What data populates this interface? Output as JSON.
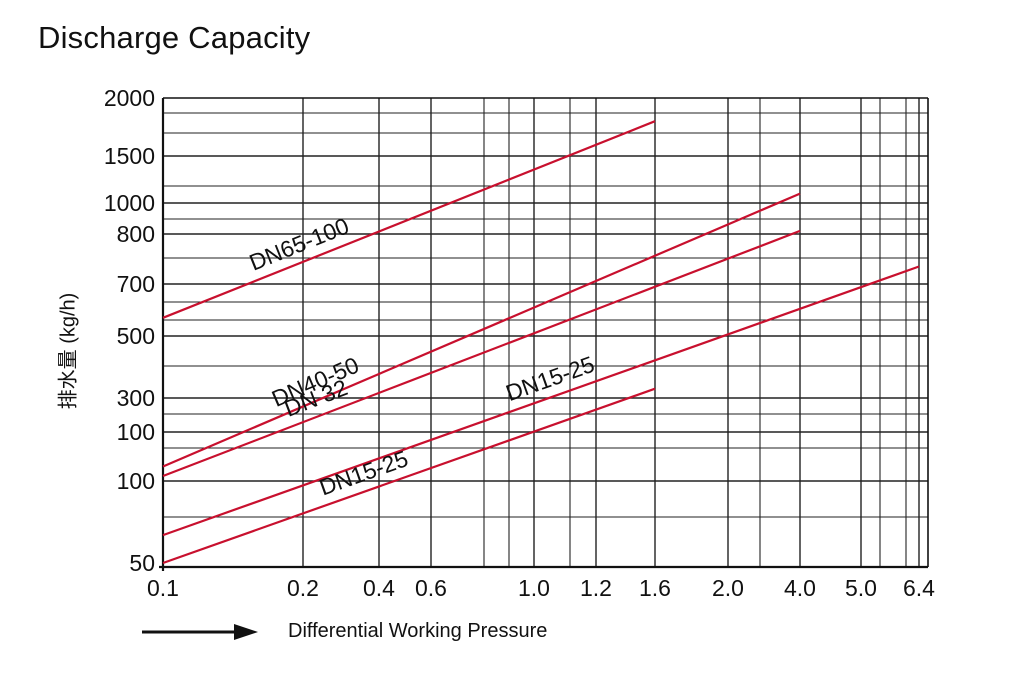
{
  "chart_data": {
    "type": "line",
    "title": "Discharge Capacity",
    "ylabel": "排水量 (kg/h)",
    "xlabel": "Differential Working Pressure",
    "y_ticks": [
      "2000",
      "1500",
      "1000",
      "800",
      "700",
      "500",
      "300",
      "100",
      "100",
      "50"
    ],
    "x_ticks": [
      "0.1",
      "0.2",
      "0.4",
      "0.6",
      "1.0",
      "1.2",
      "1.6",
      "2.0",
      "4.0",
      "5.0",
      "6.4"
    ],
    "series": [
      {
        "name": "DN65-100",
        "x": [
          "0.1",
          "1.6"
        ],
        "y": [
          570,
          1800
        ]
      },
      {
        "name": "DN40-50",
        "x": [
          "0.1",
          "4.0"
        ],
        "y": [
          135,
          1100
        ]
      },
      {
        "name": "DN 32",
        "x": [
          "0.1",
          "4.0"
        ],
        "y": [
          112,
          820
        ]
      },
      {
        "name": "DN15-25",
        "x": [
          "0.1",
          "6.4"
        ],
        "y": [
          67,
          735
        ]
      },
      {
        "name": "DN15-25",
        "x": [
          "0.1",
          "1.6"
        ],
        "y": [
          50,
          330
        ]
      }
    ],
    "grid": true,
    "line_color": "#c8102e"
  }
}
